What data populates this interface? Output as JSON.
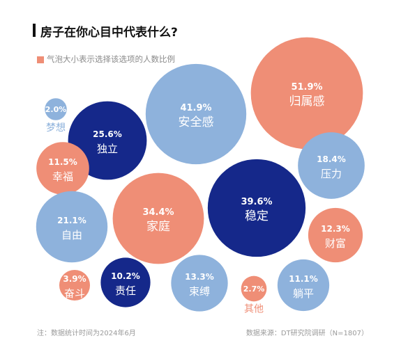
{
  "title": "房子在你心目中代表什么?",
  "legend_text": "气泡大小表示选择该选项的人数比例",
  "footnote_left": "注：数据统计时间为2024年6月",
  "footnote_right": "数据来源：DT研究院调研（N=1807）",
  "colors": {
    "salmon": "#EF8E76",
    "light_blue": "#8EB2DC",
    "navy": "#15288A",
    "title": "#111111"
  },
  "chart_data": {
    "type": "bubble",
    "title": "房子在你心目中代表什么?",
    "value_unit": "%",
    "bubbles": [
      {
        "label": "归属感",
        "value": 51.9,
        "color": "salmon"
      },
      {
        "label": "安全感",
        "value": 41.9,
        "color": "light_blue"
      },
      {
        "label": "梦想",
        "value": 2.0,
        "color": "light_blue"
      },
      {
        "label": "独立",
        "value": 25.6,
        "color": "navy"
      },
      {
        "label": "幸福",
        "value": 11.5,
        "color": "salmon"
      },
      {
        "label": "压力",
        "value": 18.4,
        "color": "light_blue"
      },
      {
        "label": "自由",
        "value": 21.1,
        "color": "light_blue"
      },
      {
        "label": "家庭",
        "value": 34.4,
        "color": "salmon"
      },
      {
        "label": "稳定",
        "value": 39.6,
        "color": "navy"
      },
      {
        "label": "财富",
        "value": 12.3,
        "color": "salmon"
      },
      {
        "label": "奋斗",
        "value": 3.9,
        "color": "salmon"
      },
      {
        "label": "责任",
        "value": 10.2,
        "color": "navy"
      },
      {
        "label": "束缚",
        "value": 13.3,
        "color": "light_blue"
      },
      {
        "label": "其他",
        "value": 2.7,
        "color": "salmon"
      },
      {
        "label": "躺平",
        "value": 11.1,
        "color": "light_blue"
      }
    ]
  }
}
